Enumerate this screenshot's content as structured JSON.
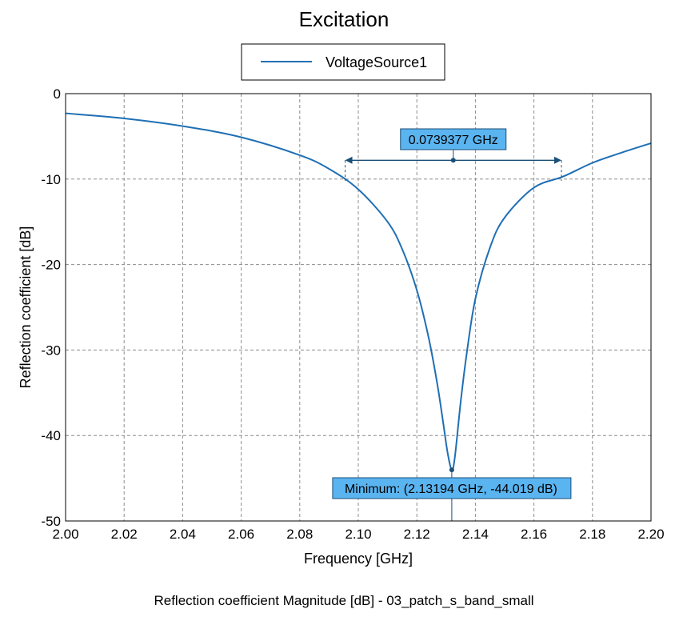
{
  "chart_data": {
    "type": "line",
    "title": "Excitation",
    "caption": "Reflection coefficient Magnitude [dB] - 03_patch_s_band_small",
    "xlabel": "Frequency [GHz]",
    "ylabel": "Reflection coefficient [dB]",
    "xlim": [
      2.0,
      2.2
    ],
    "ylim": [
      -50,
      0
    ],
    "xticks": [
      "2.00",
      "2.02",
      "2.04",
      "2.06",
      "2.08",
      "2.10",
      "2.12",
      "2.14",
      "2.16",
      "2.18",
      "2.20"
    ],
    "yticks": [
      "0",
      "-10",
      "-20",
      "-30",
      "-40",
      "-50"
    ],
    "grid": true,
    "legend": {
      "placement": "top-center",
      "entries": [
        "VoltageSource1"
      ]
    },
    "series": [
      {
        "name": "VoltageSource1",
        "color": "#1f6fb4",
        "x": [
          2.0,
          2.02,
          2.04,
          2.06,
          2.08,
          2.09,
          2.1,
          2.11,
          2.115,
          2.12,
          2.124,
          2.127,
          2.129,
          2.1305,
          2.13194,
          2.133,
          2.135,
          2.137,
          2.14,
          2.145,
          2.15,
          2.16,
          2.17,
          2.18,
          2.19,
          2.2
        ],
        "y": [
          -2.3,
          -2.9,
          -3.8,
          -5.1,
          -7.2,
          -8.8,
          -11.2,
          -15.0,
          -18.2,
          -23.0,
          -28.5,
          -34.0,
          -38.5,
          -42.0,
          -44.019,
          -42.5,
          -36.0,
          -30.5,
          -24.0,
          -18.0,
          -14.5,
          -11.0,
          -9.7,
          -8.1,
          -6.9,
          -5.8
        ]
      }
    ],
    "annotations": {
      "minimum": {
        "label": "Minimum: (2.13194 GHz, -44.019 dB)",
        "x": 2.13194,
        "y": -44.019
      },
      "bandwidth": {
        "label": "0.0739377 GHz",
        "x_start": 2.0955,
        "x_end": 2.1694,
        "y": -7.8,
        "mid_x": 2.13245
      }
    }
  }
}
